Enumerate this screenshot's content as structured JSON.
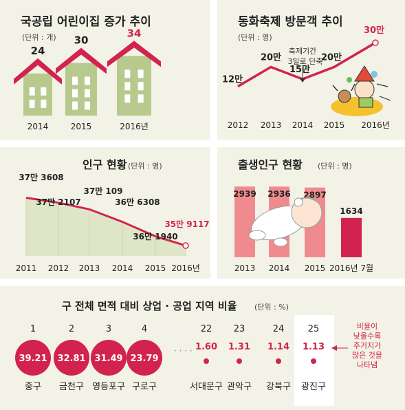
{
  "chart_data": [
    {
      "type": "bar",
      "title": "국공립 어린이집 증가 추이",
      "unit_label": "(단위 : 개)",
      "categories": [
        "2014",
        "2015",
        "2016년"
      ],
      "values": [
        24,
        30,
        34
      ],
      "value_labels": [
        "24",
        "30",
        "34"
      ],
      "colors": {
        "body": "#b8c98e",
        "roof": "#d2234f",
        "window": "#ffffff"
      }
    },
    {
      "type": "line",
      "title": "동화축제 방문객 추이",
      "unit_label": "(단위 : 명)",
      "categories": [
        "2012",
        "2013",
        "2014",
        "2015",
        "2016년"
      ],
      "values": [
        120000,
        200000,
        150000,
        200000,
        300000
      ],
      "value_labels": [
        "12만",
        "20만",
        "15만",
        "20만",
        "30만"
      ],
      "annotation": [
        "축제기간",
        "3일로 단축"
      ],
      "ylim": [
        0,
        320000
      ],
      "colors": {
        "line": "#d2234f",
        "highlight": "#d2234f"
      }
    },
    {
      "type": "area",
      "title": "인구 현황",
      "unit_label": "(단위 : 명)",
      "categories": [
        "2011",
        "2012",
        "2013",
        "2014",
        "2015",
        "2016년"
      ],
      "values": [
        373608,
        372107,
        370109,
        366308,
        361940,
        359117
      ],
      "value_labels": [
        "37만 3608",
        "37만 2107",
        "37만 109",
        "36만 6308",
        "36만 1940",
        "35만 9117"
      ],
      "ylim": [
        356000,
        376000
      ],
      "colors": {
        "line": "#d2234f",
        "fill": "#dfe6c8"
      }
    },
    {
      "type": "bar",
      "title": "출생인구 현황",
      "unit_label": "(단위 : 명)",
      "categories": [
        "2013",
        "2014",
        "2015",
        "2016년 7월"
      ],
      "values": [
        2939,
        2936,
        2897,
        1634
      ],
      "value_labels": [
        "2939",
        "2936",
        "2897",
        "1634"
      ],
      "ylim": [
        0,
        3200
      ],
      "colors": {
        "bar": "#ef8b8f",
        "highlight": "#d2234f"
      }
    },
    {
      "type": "bar",
      "title": "구 전체 면적 대비 상업 · 공업 지역 비율",
      "unit_label": "(단위 : %)",
      "categories": [
        "중구",
        "금천구",
        "영등포구",
        "구로구",
        "서대문구",
        "관악구",
        "강북구",
        "광진구"
      ],
      "ranks": [
        "1",
        "2",
        "3",
        "4",
        "22",
        "23",
        "24",
        "25"
      ],
      "values": [
        39.21,
        32.81,
        31.49,
        23.79,
        1.6,
        1.31,
        1.14,
        1.13
      ],
      "value_labels": [
        "39.21",
        "32.81",
        "31.49",
        "23.79",
        "1.60",
        "1.31",
        "1.14",
        "1.13"
      ],
      "ellipsis": "· · · ·",
      "annotation": [
        "비율이",
        "낮을수록",
        "주거지가",
        "많은 것을",
        "나타냄"
      ],
      "colors": {
        "circle": "#d2234f",
        "value_low": "#d2234f"
      }
    }
  ]
}
